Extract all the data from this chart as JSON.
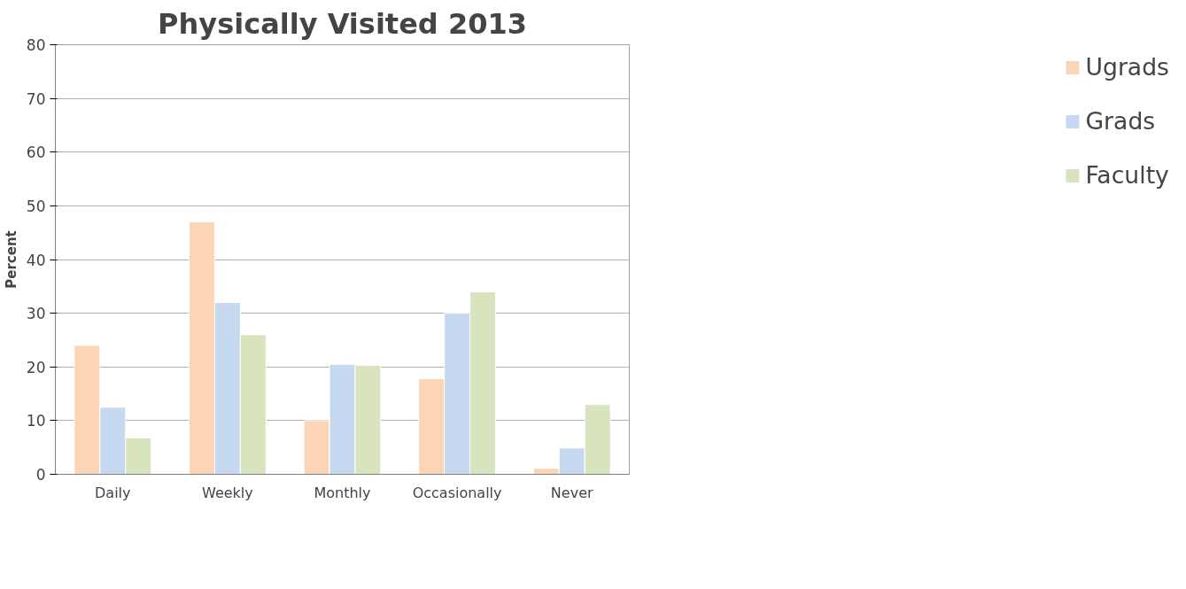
{
  "chart_data": {
    "type": "bar",
    "title": "Physically Visited 2013",
    "ylabel": "Percent",
    "categories": [
      "Daily",
      "Weekly",
      "Monthly",
      "Occasionally",
      "Never"
    ],
    "series": [
      {
        "name": "Ugrads",
        "color": "#fbd5b5",
        "values": [
          24,
          47,
          10,
          17.8,
          1.1
        ]
      },
      {
        "name": "Grads",
        "color": "#c6d9f1",
        "values": [
          12.5,
          32,
          20.5,
          30,
          4.9
        ]
      },
      {
        "name": "Faculty",
        "color": "#d7e4bd",
        "values": [
          6.8,
          26,
          20.3,
          34,
          13
        ]
      }
    ],
    "ylim": [
      0,
      80
    ],
    "yticks": [
      0,
      10,
      20,
      30,
      40,
      50,
      60,
      70,
      80
    ],
    "grid": "y",
    "legend": "right"
  }
}
